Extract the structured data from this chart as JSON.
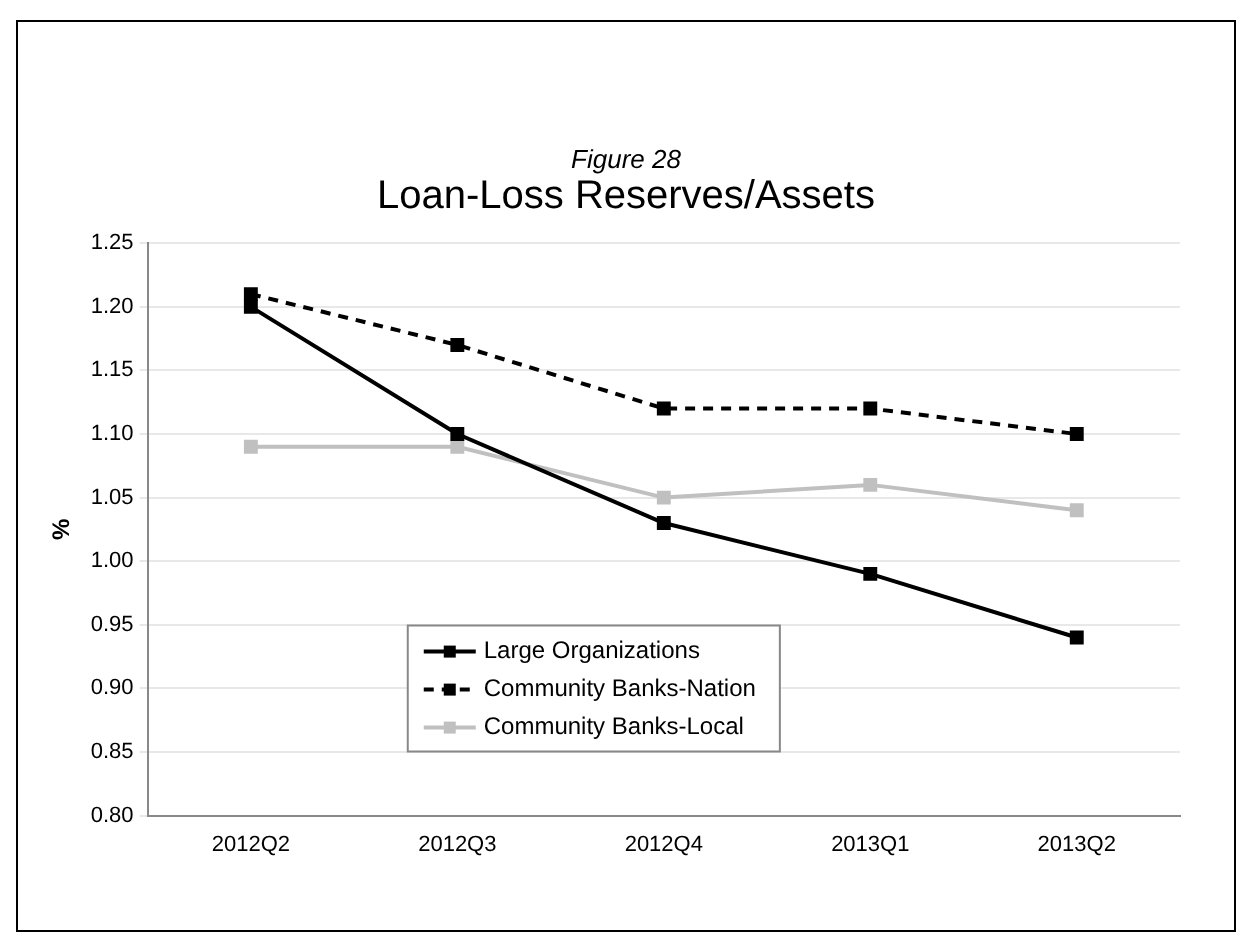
{
  "chart_data": {
    "type": "line",
    "subtitle": "Figure 28",
    "title": "Loan-Loss Reserves/Assets",
    "ylabel": "%",
    "categories": [
      "2012Q2",
      "2012Q3",
      "2012Q4",
      "2013Q1",
      "2013Q2"
    ],
    "series": [
      {
        "name": "Large Organizations",
        "color": "#000000",
        "values": [
          1.2,
          1.1,
          1.03,
          0.99,
          0.94
        ],
        "line_style": "solid"
      },
      {
        "name": "Community Banks-Nation",
        "color": "#000000",
        "values": [
          1.21,
          1.17,
          1.12,
          1.12,
          1.1
        ],
        "line_style": "dashed"
      },
      {
        "name": "Community Banks-Local",
        "color": "#c0c0c0",
        "values": [
          1.09,
          1.09,
          1.05,
          1.06,
          1.04
        ],
        "line_style": "solid"
      }
    ],
    "ylim": [
      0.8,
      1.25
    ],
    "yticks": [
      {
        "value": 0.8,
        "label": "0.80"
      },
      {
        "value": 0.85,
        "label": "0.85"
      },
      {
        "value": 0.9,
        "label": "0.90"
      },
      {
        "value": 0.95,
        "label": "0.95"
      },
      {
        "value": 1.0,
        "label": "1.00"
      },
      {
        "value": 1.05,
        "label": "1.05"
      },
      {
        "value": 1.1,
        "label": "1.10"
      },
      {
        "value": 1.15,
        "label": "1.15"
      },
      {
        "value": 1.2,
        "label": "1.20"
      },
      {
        "value": 1.25,
        "label": "1.25"
      }
    ],
    "grid": "y",
    "legend": "bottom",
    "marker": "square"
  }
}
